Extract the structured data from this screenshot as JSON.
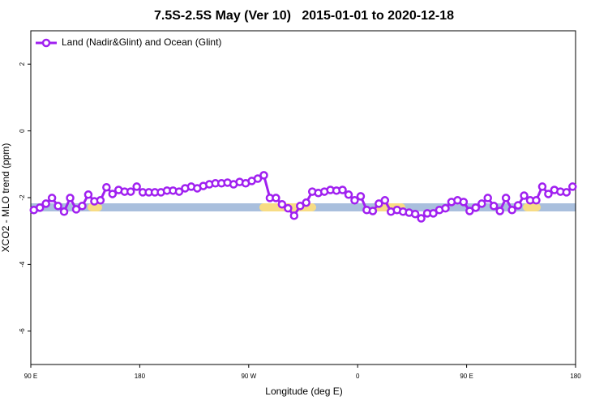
{
  "chart_data": {
    "type": "line",
    "title": "7.5S-2.5S May (Ver 10)   2015-01-01 to 2020-12-18",
    "x_label": "Longitude (deg E)",
    "y_label": "XCO2 - MLO trend (ppm)",
    "xlim": [
      90,
      540
    ],
    "xticks": [
      {
        "value": 90,
        "label": "90 E"
      },
      180,
      {
        "value": 270,
        "label": "90 W"
      },
      {
        "value": 360,
        "label": "0"
      },
      {
        "value": 450,
        "label": "90 E"
      },
      {
        "value": 540,
        "label": "180"
      }
    ],
    "ylim": [
      -7,
      3
    ],
    "yticks": [
      2,
      0,
      -2,
      -4,
      -6
    ],
    "x": [
      92.5,
      97.5,
      102.5,
      107.5,
      112.5,
      117.5,
      122.5,
      127.5,
      132.5,
      137.5,
      142.5,
      147.5,
      152.5,
      157.5,
      162.5,
      167.5,
      172.5,
      177.5,
      182.5,
      187.5,
      192.5,
      197.5,
      202.5,
      207.5,
      212.5,
      217.5,
      222.5,
      227.5,
      232.5,
      237.5,
      242.5,
      247.5,
      252.5,
      257.5,
      262.5,
      267.5,
      272.5,
      277.5,
      282.5,
      287.5,
      292.5,
      297.5,
      302.5,
      307.5,
      312.5,
      317.5,
      322.5,
      327.5,
      332.5,
      337.5,
      342.5,
      347.5,
      352.5,
      357.5,
      362.5,
      367.5,
      372.5,
      377.5,
      382.5,
      387.5,
      392.5,
      397.5,
      402.5,
      407.5,
      412.5,
      417.5,
      422.5,
      427.5,
      432.5,
      437.5,
      442.5,
      447.5,
      452.5,
      457.5,
      462.5,
      467.5,
      472.5,
      477.5,
      482.5,
      487.5,
      492.5,
      497.5,
      502.5,
      507.5,
      512.5,
      517.5,
      522.5,
      527.5,
      532.5,
      537.5
    ],
    "series": [
      {
        "name": "Land (Nadir&Glint) and Ocean (Glint)",
        "color": "#a020f0",
        "values": [
          -2.37,
          -2.3,
          -2.18,
          -2.01,
          -2.25,
          -2.42,
          -2.01,
          -2.35,
          -2.25,
          -1.91,
          -2.11,
          -2.08,
          -1.69,
          -1.89,
          -1.77,
          -1.82,
          -1.82,
          -1.67,
          -1.84,
          -1.84,
          -1.84,
          -1.84,
          -1.79,
          -1.79,
          -1.82,
          -1.72,
          -1.67,
          -1.72,
          -1.65,
          -1.6,
          -1.57,
          -1.57,
          -1.55,
          -1.6,
          -1.53,
          -1.57,
          -1.5,
          -1.43,
          -1.33,
          -2.01,
          -2.01,
          -2.2,
          -2.32,
          -2.54,
          -2.25,
          -2.15,
          -1.82,
          -1.86,
          -1.82,
          -1.77,
          -1.79,
          -1.77,
          -1.91,
          -2.08,
          -1.96,
          -2.37,
          -2.4,
          -2.18,
          -2.08,
          -2.42,
          -2.37,
          -2.42,
          -2.45,
          -2.49,
          -2.62,
          -2.47,
          -2.47,
          -2.37,
          -2.32,
          -2.13,
          -2.08,
          -2.13,
          -2.4,
          -2.3,
          -2.18,
          -2.01,
          -2.25,
          -2.4,
          -2.01,
          -2.37,
          -2.23,
          -1.94,
          -2.08,
          -2.08,
          -1.67,
          -1.89,
          -1.77,
          -1.82,
          -1.84,
          -1.67
        ]
      }
    ]
  }
}
